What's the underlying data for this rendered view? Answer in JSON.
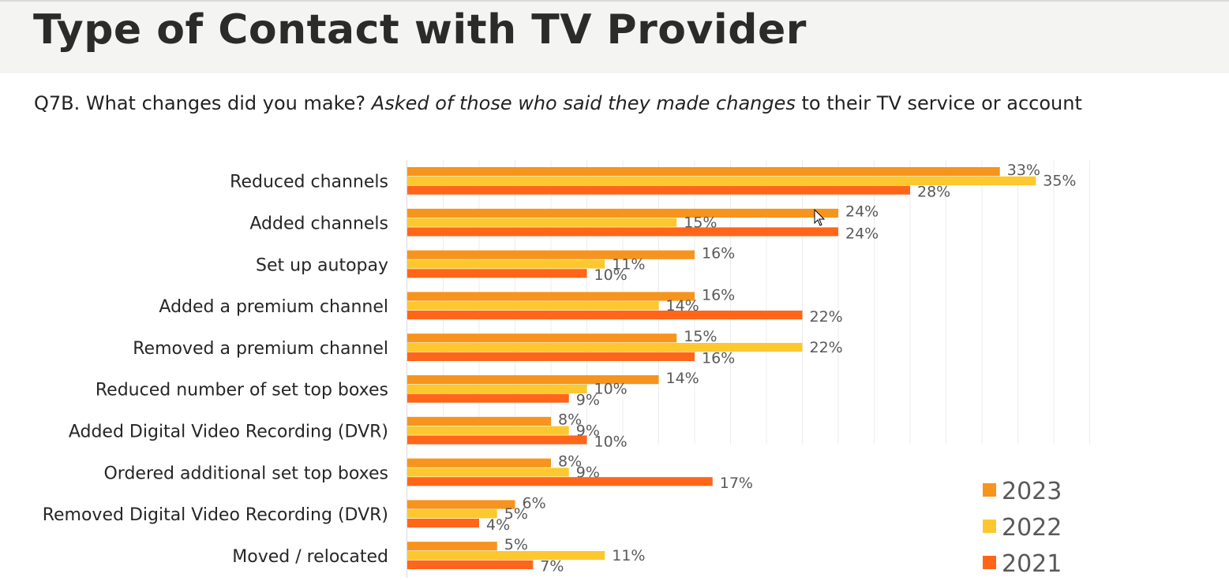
{
  "header": {
    "title": "Type of Contact with TV Provider",
    "subtitle_prefix": "Q7B. What changes did you make?",
    "subtitle_italic": "Asked of those who said they made changes",
    "subtitle_suffix": "to their TV service or account"
  },
  "colors": {
    "2023": "#f7941d",
    "2022": "#fdc82f",
    "2021": "#ff661a"
  },
  "chart_data": {
    "type": "bar",
    "orientation": "horizontal",
    "categories": [
      "Reduced channels",
      "Added channels",
      "Set up autopay",
      "Added a premium channel",
      "Removed a premium channel",
      "Reduced number of set top boxes",
      "Added Digital Video Recording (DVR)",
      "Ordered additional set top boxes",
      "Removed Digital Video Recording (DVR)",
      "Moved / relocated"
    ],
    "series": [
      {
        "name": "2023",
        "values": [
          33,
          24,
          16,
          16,
          15,
          14,
          8,
          8,
          6,
          5
        ]
      },
      {
        "name": "2022",
        "values": [
          35,
          15,
          11,
          14,
          22,
          10,
          9,
          9,
          5,
          11
        ]
      },
      {
        "name": "2021",
        "values": [
          28,
          24,
          10,
          22,
          16,
          9,
          10,
          17,
          4,
          7
        ]
      }
    ],
    "value_suffix": "%",
    "xlim": [
      0,
      38
    ],
    "grid": true,
    "legend_position": "bottom-right"
  }
}
